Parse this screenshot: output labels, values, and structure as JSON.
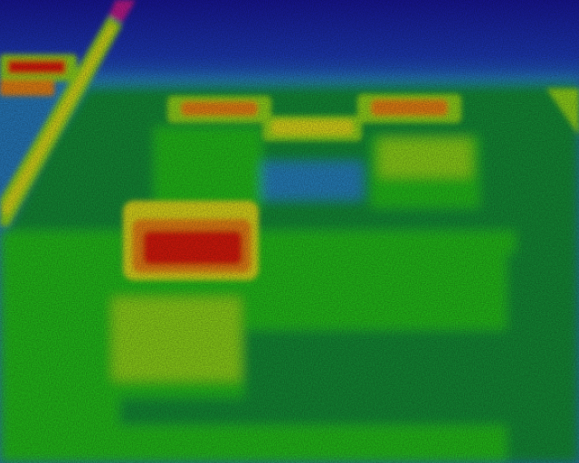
{
  "image": {
    "kind": "thermal camera false-color image",
    "palette": [
      "#1a0f8f",
      "#1f3fd0",
      "#2a8fd6",
      "#1fc7c0",
      "#14b83a",
      "#22d61c",
      "#8fe61a",
      "#f0ef1a",
      "#ff9a12",
      "#f01a0a"
    ],
    "colors": {
      "background_cold": "#1f3fc8",
      "background_cool": "#2b8fd2",
      "floor": "#149a3a",
      "warm_green": "#27d01f",
      "lime": "#9be81a",
      "yellow": "#f2ee1c",
      "orange": "#ff8f14",
      "hot": "#f21a0c",
      "stripe_magenta": "#d21a9a"
    }
  }
}
